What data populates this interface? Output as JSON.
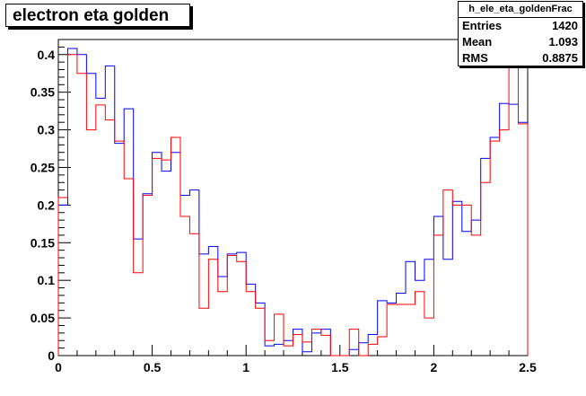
{
  "title": "electron eta golden",
  "stats": {
    "name": "h_ele_eta_goldenFrac",
    "rows": [
      {
        "label": "Entries",
        "value": "1420"
      },
      {
        "label": "Mean",
        "value": "1.093"
      },
      {
        "label": "RMS",
        "value": "0.8875"
      }
    ]
  },
  "chart_data": {
    "type": "line",
    "title": "electron eta golden",
    "xlabel": "",
    "ylabel": "",
    "xlim": [
      0,
      2.5
    ],
    "ylim": [
      0,
      0.42
    ],
    "x_ticks": [
      "0",
      "0.5",
      "1",
      "1.5",
      "2",
      "2.5"
    ],
    "y_ticks": [
      "0",
      "0.05",
      "0.1",
      "0.15",
      "0.2",
      "0.25",
      "0.3",
      "0.35",
      "0.4"
    ],
    "bin_width": 0.05,
    "bin_edges_start": 0,
    "series": [
      {
        "color": "#0000ff",
        "values": [
          0.2,
          0.408,
          0.4,
          0.375,
          0.342,
          0.385,
          0.282,
          0.328,
          0.155,
          0.215,
          0.27,
          0.245,
          0.27,
          0.213,
          0.22,
          0.135,
          0.145,
          0.105,
          0.135,
          0.137,
          0.095,
          0.07,
          0.013,
          0.015,
          0.02,
          0.035,
          0.005,
          0.03,
          0.035,
          0.0,
          0.0,
          0.008,
          0.017,
          0.028,
          0.073,
          0.07,
          0.083,
          0.125,
          0.1,
          0.128,
          0.185,
          0.128,
          0.205,
          0.165,
          0.18,
          0.262,
          0.29,
          0.335,
          0.334,
          0.31
        ]
      },
      {
        "color": "#ff0000",
        "values": [
          0.21,
          0.4,
          0.375,
          0.3,
          0.333,
          0.313,
          0.285,
          0.235,
          0.11,
          0.213,
          0.262,
          0.26,
          0.29,
          0.185,
          0.162,
          0.063,
          0.128,
          0.085,
          0.133,
          0.125,
          0.085,
          0.063,
          0.02,
          0.055,
          0.013,
          0.028,
          0.018,
          0.035,
          0.027,
          0.0,
          0.0,
          0.035,
          0.0,
          0.015,
          0.025,
          0.068,
          0.068,
          0.068,
          0.085,
          0.05,
          0.16,
          0.22,
          0.2,
          0.2,
          0.16,
          0.23,
          0.285,
          0.3,
          0.39,
          0.308
        ]
      }
    ]
  }
}
